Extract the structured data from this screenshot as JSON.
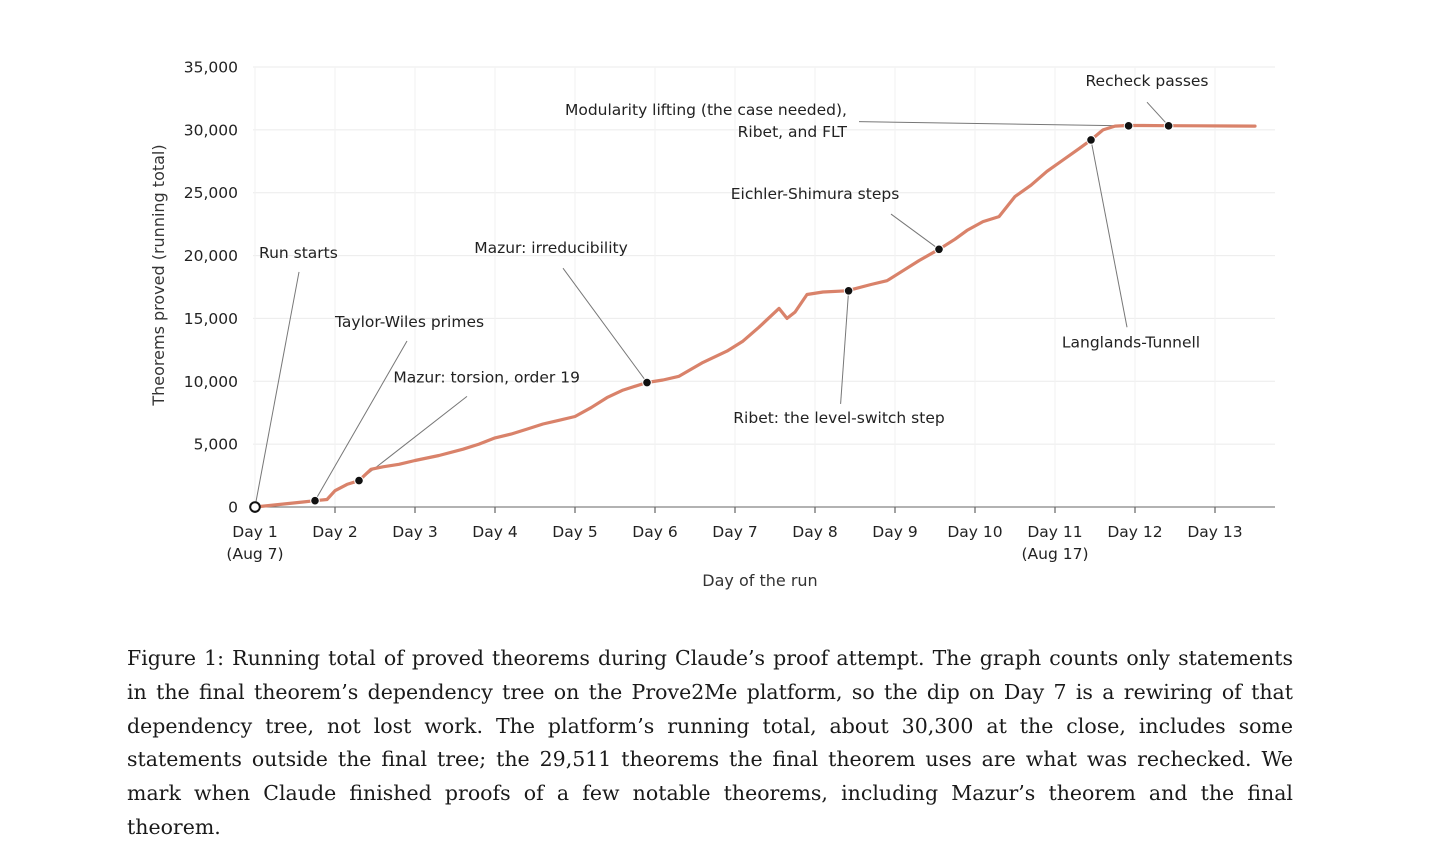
{
  "chart_data": {
    "type": "line",
    "title": "",
    "xlabel": "Day of the run",
    "ylabel": "Theorems proved (running total)",
    "xlim": [
      1,
      13.75
    ],
    "ylim": [
      0,
      35000
    ],
    "grid": true,
    "series_color": "#d9826a",
    "x_ticks": [
      {
        "value": 1,
        "label": "Day 1",
        "sublabel": "(Aug 7)"
      },
      {
        "value": 2,
        "label": "Day 2",
        "sublabel": ""
      },
      {
        "value": 3,
        "label": "Day 3",
        "sublabel": ""
      },
      {
        "value": 4,
        "label": "Day 4",
        "sublabel": ""
      },
      {
        "value": 5,
        "label": "Day 5",
        "sublabel": ""
      },
      {
        "value": 6,
        "label": "Day 6",
        "sublabel": ""
      },
      {
        "value": 7,
        "label": "Day 7",
        "sublabel": ""
      },
      {
        "value": 8,
        "label": "Day 8",
        "sublabel": ""
      },
      {
        "value": 9,
        "label": "Day 9",
        "sublabel": ""
      },
      {
        "value": 10,
        "label": "Day 10",
        "sublabel": ""
      },
      {
        "value": 11,
        "label": "Day 11",
        "sublabel": "(Aug 17)"
      },
      {
        "value": 12,
        "label": "Day 12",
        "sublabel": ""
      },
      {
        "value": 13,
        "label": "Day 13",
        "sublabel": ""
      }
    ],
    "y_ticks": [
      {
        "value": 0,
        "label": "0"
      },
      {
        "value": 5000,
        "label": "5,000"
      },
      {
        "value": 10000,
        "label": "10,000"
      },
      {
        "value": 15000,
        "label": "15,000"
      },
      {
        "value": 20000,
        "label": "20,000"
      },
      {
        "value": 25000,
        "label": "25,000"
      },
      {
        "value": 30000,
        "label": "30,000"
      },
      {
        "value": 35000,
        "label": "35,000"
      }
    ],
    "series": [
      {
        "x": [
          1.0,
          1.3,
          1.6,
          1.75,
          1.9,
          2.0,
          2.15,
          2.3,
          2.45,
          2.6,
          2.8,
          3.0,
          3.3,
          3.6,
          3.8,
          4.0,
          4.2,
          4.4,
          4.6,
          4.8,
          5.0,
          5.2,
          5.4,
          5.6,
          5.9,
          6.1,
          6.3,
          6.6,
          6.9,
          7.1,
          7.3,
          7.55,
          7.65,
          7.75,
          7.9,
          8.1,
          8.4,
          8.7,
          8.9,
          9.1,
          9.3,
          9.55,
          9.75,
          9.9,
          10.1,
          10.3,
          10.5,
          10.7,
          10.9,
          11.1,
          11.3,
          11.45,
          11.6,
          11.75,
          11.9,
          12.1,
          12.4,
          12.8,
          13.2,
          13.5
        ],
        "y": [
          0,
          200,
          400,
          500,
          600,
          1300,
          1800,
          2100,
          3000,
          3200,
          3400,
          3700,
          4100,
          4600,
          5000,
          5500,
          5800,
          6200,
          6600,
          6900,
          7200,
          7900,
          8700,
          9300,
          9900,
          10100,
          10400,
          11500,
          12400,
          13200,
          14300,
          15800,
          15000,
          15500,
          16900,
          17100,
          17200,
          17700,
          18000,
          18800,
          19600,
          20500,
          21300,
          22000,
          22700,
          23100,
          24700,
          25600,
          26700,
          27600,
          28500,
          29200,
          30000,
          30300,
          30350,
          30350,
          30330,
          30320,
          30310,
          30300
        ]
      }
    ],
    "markers": [
      {
        "x": 1.0,
        "y": 0,
        "open": true
      },
      {
        "x": 1.75,
        "y": 500,
        "open": false
      },
      {
        "x": 2.3,
        "y": 2100,
        "open": false
      },
      {
        "x": 5.9,
        "y": 9900,
        "open": false
      },
      {
        "x": 8.42,
        "y": 17200,
        "open": false
      },
      {
        "x": 9.55,
        "y": 20500,
        "open": false
      },
      {
        "x": 11.45,
        "y": 29200,
        "open": false
      },
      {
        "x": 11.92,
        "y": 30320,
        "open": false
      },
      {
        "x": 12.42,
        "y": 30320,
        "open": false
      }
    ],
    "annotations": [
      {
        "lines": [
          "Run starts"
        ],
        "target": [
          1.0,
          0
        ],
        "label_at": [
          1.05,
          19800
        ],
        "anchor": "start",
        "connector_from": [
          1.55,
          18700
        ]
      },
      {
        "lines": [
          "Taylor-Wiles primes"
        ],
        "target": [
          1.75,
          500
        ],
        "label_at": [
          2.0,
          14300
        ],
        "anchor": "start",
        "connector_from": [
          2.9,
          13200
        ]
      },
      {
        "lines": [
          "Mazur: torsion, order 19"
        ],
        "target": [
          2.3,
          2100
        ],
        "label_at": [
          2.73,
          9900
        ],
        "anchor": "start",
        "connector_from": [
          3.65,
          8800
        ]
      },
      {
        "lines": [
          "Mazur: irreducibility"
        ],
        "target": [
          5.9,
          9900
        ],
        "label_at": [
          4.7,
          20200
        ],
        "anchor": "middle",
        "connector_from": [
          4.85,
          19000
        ]
      },
      {
        "lines": [
          "Ribet: the level-switch step"
        ],
        "target": [
          8.42,
          17200
        ],
        "label_at": [
          8.3,
          6700
        ],
        "anchor": "middle",
        "connector_from": [
          8.32,
          8200
        ]
      },
      {
        "lines": [
          "Eichler-Shimura steps"
        ],
        "target": [
          9.55,
          20500
        ],
        "label_at": [
          8.0,
          24500
        ],
        "anchor": "middle",
        "connector_from": [
          8.95,
          23300
        ]
      },
      {
        "lines": [
          "Modularity lifting (the case needed),",
          "Ribet, and FLT"
        ],
        "target": [
          11.92,
          30320
        ],
        "label_at": [
          8.4,
          31200
        ],
        "anchor": "end",
        "connector_from": [
          8.55,
          30650
        ]
      },
      {
        "lines": [
          "Recheck passes"
        ],
        "target": [
          12.42,
          30320
        ],
        "label_at": [
          12.15,
          33500
        ],
        "anchor": "middle",
        "connector_from": [
          12.15,
          32200
        ]
      },
      {
        "lines": [
          "Langlands-Tunnell"
        ],
        "target": [
          11.45,
          29200
        ],
        "label_at": [
          11.95,
          12700
        ],
        "anchor": "middle",
        "connector_from": [
          11.9,
          14300
        ]
      }
    ]
  },
  "caption": "Figure 1: Running total of proved theorems during Claude’s proof attempt. The graph counts only statements in the final theorem’s dependency tree on the Prove2Me platform, so the dip on Day 7 is a rewiring of that dependency tree, not lost work. The platform’s running total, about 30,300 at the close, includes some statements outside the final tree; the 29,511 theorems the final theorem uses are what was rechecked. We mark when Claude finished proofs of a few notable theorems, including Mazur’s theorem and the final theorem."
}
